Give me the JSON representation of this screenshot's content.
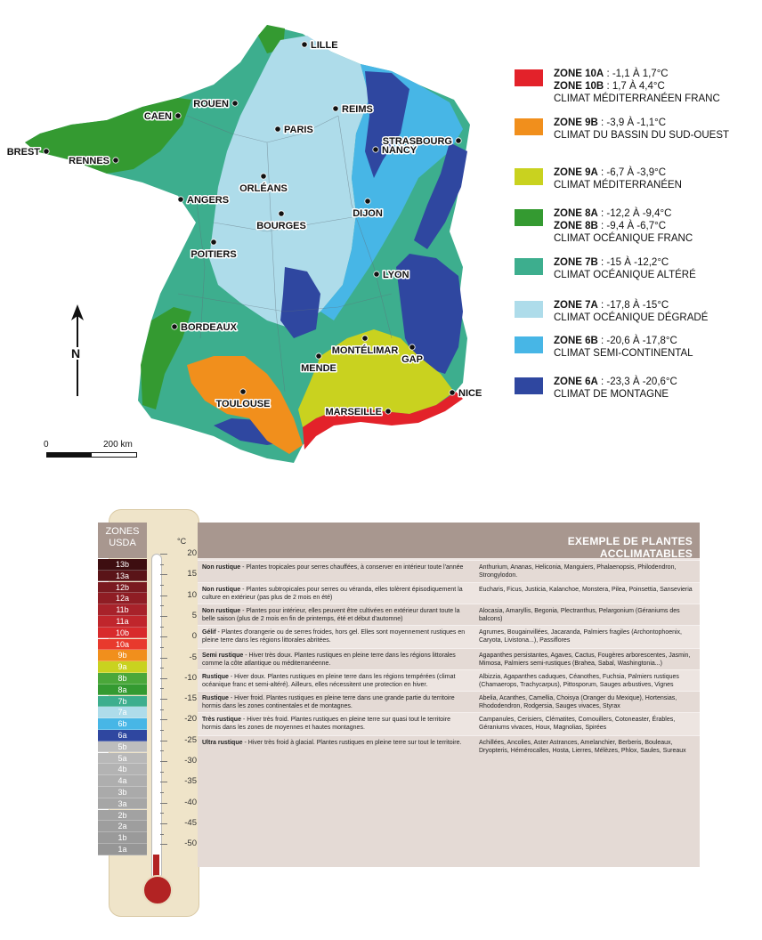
{
  "map": {
    "cities": [
      {
        "name": "LILLE"
      },
      {
        "name": "ROUEN"
      },
      {
        "name": "CAEN"
      },
      {
        "name": "REIMS"
      },
      {
        "name": "PARIS"
      },
      {
        "name": "BREST"
      },
      {
        "name": "RENNES"
      },
      {
        "name": "STRASBOURG"
      },
      {
        "name": "NANCY"
      },
      {
        "name": "ORLÉANS"
      },
      {
        "name": "ANGERS"
      },
      {
        "name": "DIJON"
      },
      {
        "name": "BOURGES"
      },
      {
        "name": "POITIERS"
      },
      {
        "name": "LYON"
      },
      {
        "name": "BORDEAUX"
      },
      {
        "name": "MONTÉLIMAR"
      },
      {
        "name": "GAP"
      },
      {
        "name": "MENDE"
      },
      {
        "name": "TOULOUSE"
      },
      {
        "name": "NICE"
      },
      {
        "name": "MARSEILLE"
      }
    ],
    "north_label": "N",
    "scale": {
      "start": "0",
      "end": "200 km"
    }
  },
  "legend": [
    {
      "color": "#e3222a",
      "lines": [
        {
          "zone": "ZONE 10A",
          "range": " : -1,1 À 1,7°C"
        },
        {
          "zone": "ZONE 10B",
          "range": " : 1,7 À 4,4°C"
        }
      ],
      "climate": "CLIMAT MÉDITERRANÉEN FRANC"
    },
    {
      "color": "#f18f1c",
      "lines": [
        {
          "zone": "ZONE 9B",
          "range": " : -3,9 À -1,1°C"
        }
      ],
      "climate": "CLIMAT DU BASSIN DU SUD-OUEST"
    },
    {
      "color": "#c9d21f",
      "lines": [
        {
          "zone": "ZONE 9A",
          "range": " : -6,7 À -3,9°C"
        }
      ],
      "climate": "CLIMAT MÉDITERRANÉEN"
    },
    {
      "color": "#349a31",
      "lines": [
        {
          "zone": "ZONE 8A",
          "range": " : -12,2 À -9,4°C"
        },
        {
          "zone": "ZONE 8B",
          "range": " : -9,4 À -6,7°C"
        }
      ],
      "climate": "CLIMAT OCÉANIQUE FRANC"
    },
    {
      "color": "#3dae8e",
      "lines": [
        {
          "zone": "ZONE 7B",
          "range": " : -15 À -12,2°C"
        }
      ],
      "climate": "CLIMAT OCÉANIQUE ALTÉRÉ"
    },
    {
      "color": "#aedcea",
      "lines": [
        {
          "zone": "ZONE 7A",
          "range": " : -17,8 À -15°C"
        }
      ],
      "climate": "CLIMAT OCÉANIQUE DÉGRADÉ"
    },
    {
      "color": "#47b6e6",
      "lines": [
        {
          "zone": "ZONE 6B",
          "range": " : -20,6 À -17,8°C"
        }
      ],
      "climate": "CLIMAT SEMI-CONTINENTAL"
    },
    {
      "color": "#2f47a0",
      "lines": [
        {
          "zone": "ZONE 6A",
          "range": " : -23,3 À -20,6°C"
        }
      ],
      "climate": "CLIMAT DE MONTAGNE"
    }
  ],
  "thermometer": {
    "header": "ZONES USDA",
    "unit": "°C",
    "zones": [
      {
        "label": "13b",
        "color": "#3d0e10"
      },
      {
        "label": "13a",
        "color": "#5a1418"
      },
      {
        "label": "12b",
        "color": "#7a1a20"
      },
      {
        "label": "12a",
        "color": "#8f1d24"
      },
      {
        "label": "11b",
        "color": "#a8222a"
      },
      {
        "label": "11a",
        "color": "#c0262c"
      },
      {
        "label": "10b",
        "color": "#d82a2c"
      },
      {
        "label": "10a",
        "color": "#e8392d"
      },
      {
        "label": "9b",
        "color": "#f18f1c"
      },
      {
        "label": "9a",
        "color": "#c9d21f"
      },
      {
        "label": "8b",
        "color": "#4aa73a"
      },
      {
        "label": "8a",
        "color": "#349a31"
      },
      {
        "label": "7b",
        "color": "#3dae8e"
      },
      {
        "label": "7a",
        "color": "#aedcea"
      },
      {
        "label": "6b",
        "color": "#47b6e6"
      },
      {
        "label": "6a",
        "color": "#2f47a0"
      },
      {
        "label": "5b",
        "color": "#bdbdbd"
      },
      {
        "label": "5a",
        "color": "#b8b8b8"
      },
      {
        "label": "4b",
        "color": "#b3b3b3"
      },
      {
        "label": "4a",
        "color": "#aeaeae"
      },
      {
        "label": "3b",
        "color": "#aaaaaa"
      },
      {
        "label": "3a",
        "color": "#a6a6a6"
      },
      {
        "label": "2b",
        "color": "#a2a2a2"
      },
      {
        "label": "2a",
        "color": "#9e9e9e"
      },
      {
        "label": "1b",
        "color": "#9a9a9a"
      },
      {
        "label": "1a",
        "color": "#969696"
      }
    ],
    "ticks": [
      "20",
      "15",
      "10",
      "5",
      "0",
      "-5",
      "-10",
      "-15",
      "-20",
      "-25",
      "-30",
      "-35",
      "-40",
      "-45",
      "-50"
    ]
  },
  "table": {
    "title": "EXEMPLE DE PLANTES ACCLIMATABLES",
    "rows": [
      {
        "term": "Non rustique",
        "desc": " - Plantes tropicales pour serres chauffées, à conserver en intérieur toute l'année",
        "plants": "Anthurium, Ananas, Heliconia, Manguiers, Phalaenopsis, Philodendron, Strongylodon."
      },
      {
        "term": "Non rustique",
        "desc": " - Plantes subtropicales pour serres ou véranda, elles tolèrent épisodiquement la culture en extérieur (pas plus de 2 mois en été)",
        "plants": "Eucharis, Ficus, Justicia, Kalanchoe, Monstera, Pilea, Poinsettia, Sansevieria"
      },
      {
        "term": "Non rustique",
        "desc": " - Plantes pour intérieur, elles peuvent être cultivées en extérieur durant toute la belle saison (plus de 2 mois en fin de printemps, été et début d'automne)",
        "plants": "Alocasia, Amaryllis, Begonia, Plectranthus, Pelargonium (Géraniums des balcons)"
      },
      {
        "term": "Gélif",
        "desc": " - Plantes d'orangerie ou de serres froides, hors gel. Elles sont moyennement rustiques en pleine terre dans les régions littorales abritées.",
        "plants": "Agrumes, Bougainvillées, Jacaranda, Palmiers fragiles (Archontophoenix, Caryota, Livistona...), Passiflores"
      },
      {
        "term": "Semi rustique",
        "desc": " - Hiver très doux. Plantes rustiques en pleine terre dans les régions littorales comme la côte atlantique ou méditerranéenne.",
        "plants": "Agapanthes persistantes, Agaves, Cactus, Fougères arborescentes, Jasmin, Mimosa, Palmiers semi-rustiques (Brahea, Sabal, Washingtonia...)"
      },
      {
        "term": "Rustique",
        "desc": " - Hiver doux. Plantes rustiques en pleine terre dans les régions tempérées (climat océanique franc et semi-altéré). Ailleurs, elles nécessitent une protection en hiver.",
        "plants": "Albizzia, Agapanthes caduques, Céanothes, Fuchsia, Palmiers rustiques (Chamaerops, Trachycarpus), Pittosporum, Sauges arbustives, Vignes"
      },
      {
        "term": "Rustique",
        "desc": " - Hiver froid. Plantes rustiques en pleine terre dans une grande partie du territoire hormis dans les zones continentales et de montagnes.",
        "plants": "Abelia, Acanthes, Camellia, Choisya (Oranger du Mexique), Hortensias, Rhododendron, Rodgersia, Sauges vivaces, Styrax"
      },
      {
        "term": "Très rustique",
        "desc": " - Hiver très froid. Plantes rustiques en pleine terre sur quasi tout le territoire hormis dans les zones de moyennes et hautes montagnes.",
        "plants": "Campanules, Cerisiers, Clématites, Cornouillers, Cotoneaster, Érables, Géraniums vivaces, Houx, Magnolias, Spirées"
      },
      {
        "term": "Ultra rustique",
        "desc": " - Hiver très froid à glacial. Plantes rustiques en pleine terre sur tout le territoire.",
        "plants": "Achillées, Ancolies, Aster Astrances, Amelanchier, Berberis, Bouleaux, Dryopteris, Hémérocalles, Hosta, Lierres, Mélèzes, Phlox, Saules, Sureaux"
      }
    ]
  }
}
